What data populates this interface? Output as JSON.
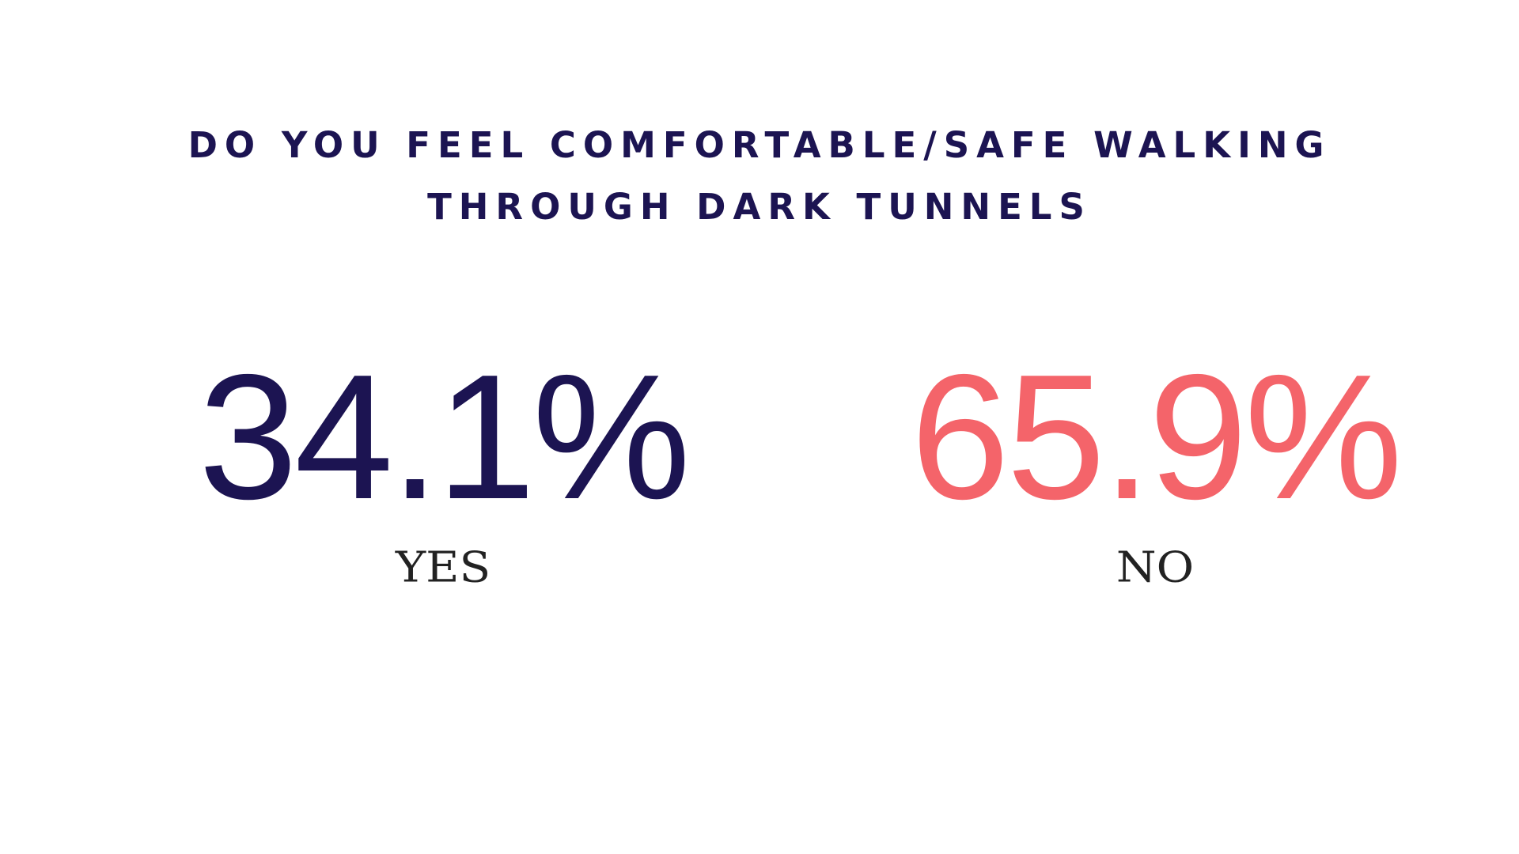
{
  "title": {
    "line1": "DO YOU FEEL COMFORTABLE/SAFE WALKING",
    "line2": "THROUGH DARK TUNNELS"
  },
  "stats": {
    "yes": {
      "value": "34.1%",
      "label": "YES",
      "color": "#1c1452"
    },
    "no": {
      "value": "65.9%",
      "label": "NO",
      "color": "#f4646a"
    }
  },
  "colors": {
    "title": "#1c1452",
    "label": "#222222",
    "background": "#ffffff"
  }
}
